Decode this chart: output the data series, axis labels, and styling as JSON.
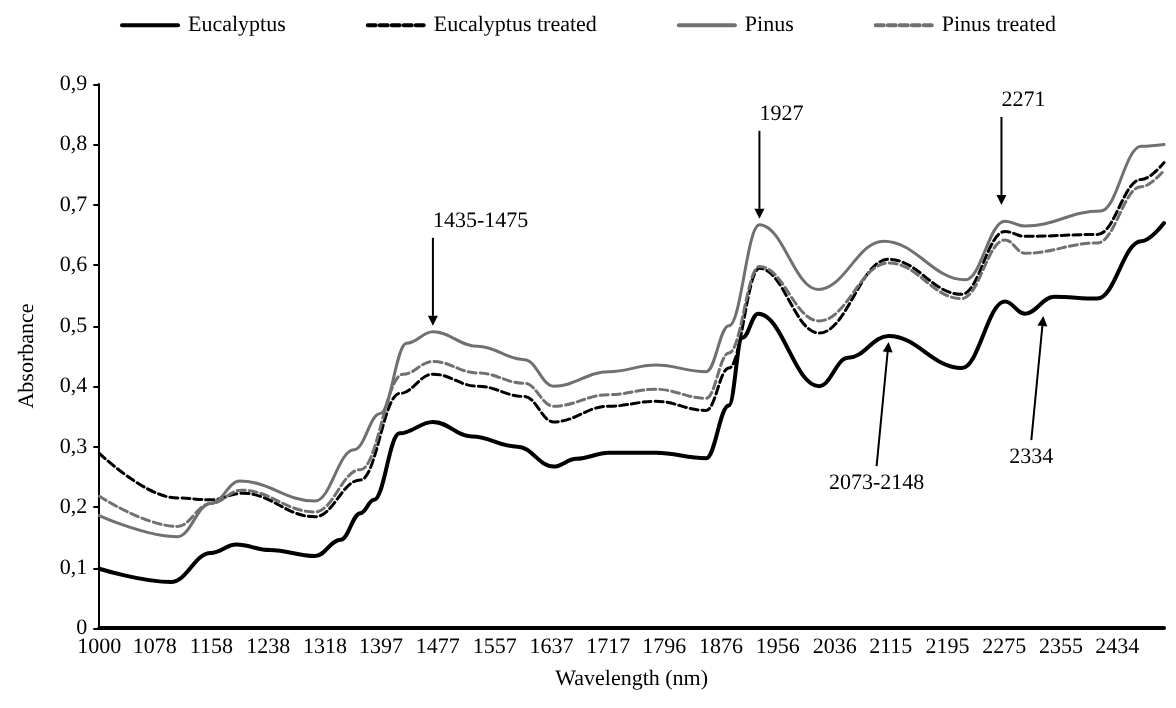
{
  "chart_data": {
    "type": "line",
    "xlabel": "Wavelength (nm)",
    "ylabel": "Absorbance",
    "xlim": [
      1000,
      2500
    ],
    "xticks": [
      1000,
      1078,
      1158,
      1238,
      1318,
      1397,
      1477,
      1557,
      1637,
      1717,
      1796,
      1876,
      1956,
      2036,
      2115,
      2195,
      2275,
      2355,
      2434
    ],
    "ylim": [
      0,
      0.9
    ],
    "yticks": [
      0,
      {
        "value": 0.1,
        "label": "0,1"
      },
      {
        "value": 0.2,
        "label": "0,2"
      },
      {
        "value": 0.3,
        "label": "0,3"
      },
      {
        "value": 0.4,
        "label": "0,4"
      },
      {
        "value": 0.5,
        "label": "0,5"
      },
      {
        "value": 0.6,
        "label": "0,6"
      },
      {
        "value": 0.7,
        "label": "0,7"
      },
      {
        "value": 0.8,
        "label": "0,8"
      },
      {
        "value": 0.9,
        "label": "0,9"
      }
    ],
    "grid": false,
    "legend": "top",
    "marker": "none",
    "series": [
      {
        "name": "Eucalyptus",
        "color": "#000000",
        "line_style": "solid",
        "x": [
          1000,
          1101,
          1157,
          1193,
          1240,
          1304,
          1340,
          1368,
          1387,
          1423,
          1470,
          1525,
          1589,
          1640,
          1672,
          1718,
          1784,
          1855,
          1887,
          1906,
          1928,
          2014,
          2055,
          2112,
          2215,
          2276,
          2304,
          2345,
          2406,
          2468,
          2500
        ],
        "values": [
          0.098,
          0.076,
          0.124,
          0.138,
          0.129,
          0.119,
          0.146,
          0.19,
          0.212,
          0.322,
          0.341,
          0.317,
          0.3,
          0.267,
          0.28,
          0.29,
          0.29,
          0.281,
          0.368,
          0.48,
          0.52,
          0.4,
          0.447,
          0.483,
          0.43,
          0.54,
          0.52,
          0.548,
          0.545,
          0.64,
          0.67
        ]
      },
      {
        "name": "Eucalyptus treated",
        "color": "#000000",
        "line_style": "dashed",
        "x": [
          1000,
          1110,
          1157,
          1202,
          1304,
          1368,
          1423,
          1470,
          1533,
          1599,
          1640,
          1718,
          1784,
          1855,
          1887,
          1930,
          2014,
          2112,
          2215,
          2276,
          2304,
          2406,
          2468,
          2500
        ],
        "values": [
          0.289,
          0.215,
          0.212,
          0.223,
          0.184,
          0.245,
          0.388,
          0.42,
          0.4,
          0.383,
          0.341,
          0.367,
          0.375,
          0.36,
          0.43,
          0.595,
          0.488,
          0.61,
          0.552,
          0.656,
          0.648,
          0.651,
          0.742,
          0.77
        ]
      },
      {
        "name": "Pinus",
        "color": "#707070",
        "line_style": "solid",
        "x": [
          1000,
          1110,
          1157,
          1198,
          1304,
          1359,
          1396,
          1433,
          1470,
          1533,
          1599,
          1640,
          1718,
          1784,
          1855,
          1887,
          1930,
          2013,
          2105,
          2220,
          2276,
          2304,
          2411,
          2468,
          2500
        ],
        "values": [
          0.186,
          0.151,
          0.206,
          0.243,
          0.21,
          0.295,
          0.355,
          0.471,
          0.49,
          0.466,
          0.444,
          0.4,
          0.424,
          0.435,
          0.424,
          0.5,
          0.667,
          0.56,
          0.64,
          0.576,
          0.673,
          0.665,
          0.69,
          0.797,
          0.8
        ]
      },
      {
        "name": "Pinus treated",
        "color": "#707070",
        "line_style": "dashed",
        "x": [
          1000,
          1110,
          1157,
          1200,
          1304,
          1368,
          1428,
          1470,
          1533,
          1599,
          1640,
          1718,
          1784,
          1855,
          1887,
          1930,
          2014,
          2112,
          2215,
          2276,
          2304,
          2406,
          2468,
          2500
        ],
        "values": [
          0.218,
          0.168,
          0.206,
          0.228,
          0.192,
          0.262,
          0.42,
          0.441,
          0.422,
          0.405,
          0.367,
          0.386,
          0.395,
          0.38,
          0.455,
          0.598,
          0.508,
          0.604,
          0.545,
          0.642,
          0.62,
          0.637,
          0.73,
          0.757
        ]
      }
    ],
    "annotations": [
      {
        "text": "1435-1475",
        "x": 1470,
        "y": 0.49
      },
      {
        "text": "1927",
        "x": 1930,
        "y": 0.667
      },
      {
        "text": "2271",
        "x": 2271,
        "y": 0.69
      },
      {
        "text": "2073-2148",
        "x": 2112,
        "y": 0.483
      },
      {
        "text": "2334",
        "x": 2330,
        "y": 0.526
      }
    ]
  }
}
